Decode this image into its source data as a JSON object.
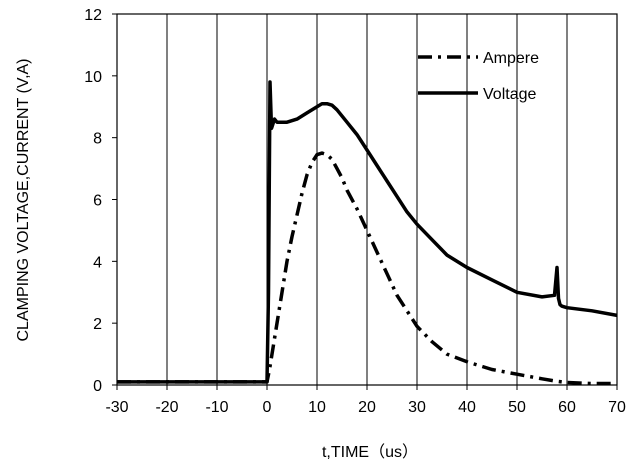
{
  "chart_data": {
    "type": "line",
    "title": "",
    "xlabel": "t,TIME（us）",
    "ylabel": "CLAMPING VOLTAGE,CURRENT  (V,A)",
    "xlim": [
      -30,
      70
    ],
    "ylim": [
      0,
      12
    ],
    "x_ticks": [
      -30,
      -20,
      -10,
      0,
      10,
      20,
      30,
      40,
      50,
      60,
      70
    ],
    "y_ticks": [
      0,
      2,
      4,
      6,
      8,
      10,
      12
    ],
    "x_tick_labels": [
      "-30",
      "-20",
      "-10",
      "0",
      "10",
      "20",
      "30",
      "40",
      "50",
      "60",
      "70"
    ],
    "y_tick_labels": [
      "0",
      "2",
      "4",
      "6",
      "8",
      "10",
      "12"
    ],
    "grid": {
      "vertical": true,
      "horizontal": false
    },
    "legend": {
      "placement": "top-right",
      "entries": [
        {
          "label": "Ampere",
          "style": "dash-dot"
        },
        {
          "label": "Voltage",
          "style": "solid"
        }
      ]
    },
    "series": [
      {
        "name": "Ampere",
        "style": "dash-dot",
        "color": "#000000",
        "x": [
          -30,
          -20,
          -10,
          -1,
          0,
          0.5,
          1,
          2,
          3,
          4,
          5,
          6,
          7,
          8,
          9,
          10,
          11,
          12,
          13,
          14,
          15,
          16,
          18,
          20,
          22,
          24,
          26,
          28,
          30,
          33,
          36,
          40,
          45,
          50,
          55,
          58,
          60,
          65,
          70
        ],
        "y": [
          0.1,
          0.1,
          0.1,
          0.1,
          0.1,
          0.5,
          1.0,
          2.0,
          3.0,
          4.0,
          4.8,
          5.5,
          6.2,
          6.8,
          7.2,
          7.45,
          7.5,
          7.45,
          7.3,
          7.0,
          6.7,
          6.3,
          5.7,
          5.0,
          4.3,
          3.6,
          2.9,
          2.4,
          1.9,
          1.4,
          1.0,
          0.75,
          0.5,
          0.35,
          0.2,
          0.12,
          0.08,
          0.05,
          0.05
        ]
      },
      {
        "name": "Voltage",
        "style": "solid",
        "color": "#000000",
        "x": [
          -30,
          -20,
          -10,
          -1,
          0,
          0.3,
          0.6,
          0.9,
          1.5,
          2,
          4,
          6,
          8,
          10,
          11,
          12,
          13,
          14,
          16,
          18,
          20,
          22,
          24,
          26,
          28,
          30,
          33,
          36,
          40,
          45,
          50,
          55,
          57.5,
          58,
          58.3,
          58.6,
          59,
          60,
          65,
          70
        ],
        "y": [
          0.1,
          0.1,
          0.1,
          0.1,
          0.1,
          3.0,
          9.8,
          8.3,
          8.6,
          8.5,
          8.5,
          8.6,
          8.8,
          9.0,
          9.1,
          9.1,
          9.05,
          8.9,
          8.5,
          8.1,
          7.6,
          7.1,
          6.6,
          6.1,
          5.6,
          5.2,
          4.7,
          4.2,
          3.8,
          3.4,
          3.0,
          2.85,
          2.9,
          3.8,
          2.8,
          2.6,
          2.55,
          2.5,
          2.4,
          2.25
        ]
      }
    ]
  }
}
